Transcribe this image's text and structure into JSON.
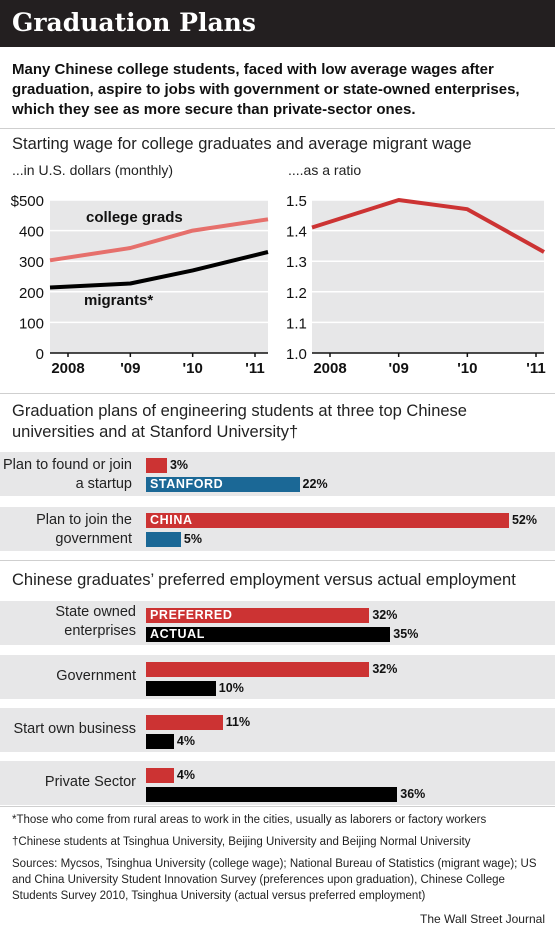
{
  "title": "Graduation Plans",
  "intro": "Many Chinese college students, faced with low average wages after graduation, aspire to jobs with government or state-owned enterprises, which they see as more secure than private-sector ones.",
  "colors": {
    "red": "#cc3333",
    "pink": "#e6706c",
    "blue": "#1b6896",
    "black": "#000000",
    "panel": "#e7e7e8"
  },
  "chart_data": [
    {
      "type": "line",
      "title": "Starting wage for college graduates and average migrant wage",
      "subtitle": "...in U.S. dollars (monthly)",
      "x": [
        "2008",
        "'09",
        "'10",
        "'11"
      ],
      "ylim": [
        0,
        500
      ],
      "ytick_labels": [
        "$500",
        "400",
        "300",
        "200",
        "100",
        "0"
      ],
      "grid": true,
      "series": [
        {
          "name": "college grads",
          "values": [
            303,
            343,
            400,
            437
          ]
        },
        {
          "name": "migrants*",
          "values": [
            214,
            227,
            270,
            330
          ]
        }
      ]
    },
    {
      "type": "line",
      "subtitle": "....as a ratio",
      "x": [
        "2008",
        "'09",
        "'10",
        "'11"
      ],
      "ylim": [
        1.0,
        1.5
      ],
      "ytick_labels": [
        "1.5",
        "1.4",
        "1.3",
        "1.2",
        "1.1",
        "1.0"
      ],
      "grid": true,
      "series": [
        {
          "values": [
            1.41,
            1.5,
            1.47,
            1.33
          ]
        }
      ]
    },
    {
      "type": "bar",
      "title": "Graduation plans of engineering students at three top Chinese universities and at Stanford University†",
      "series_labels": [
        "CHINA",
        "STANFORD"
      ],
      "groups": [
        {
          "label": "Plan to found or join a startup",
          "values": [
            3,
            22
          ]
        },
        {
          "label": "Plan to join the government",
          "values": [
            52,
            5
          ]
        }
      ],
      "value_labels": [
        [
          "3%",
          "22%"
        ],
        [
          "52%",
          "5%"
        ]
      ]
    },
    {
      "type": "bar",
      "title": "Chinese graduates’ preferred employment versus actual employment",
      "series_labels": [
        "PREFERRED",
        "ACTUAL"
      ],
      "groups": [
        {
          "label": "State owned enterprises",
          "values": [
            32,
            35
          ]
        },
        {
          "label": "Government",
          "values": [
            32,
            10
          ]
        },
        {
          "label": "Start own business",
          "values": [
            11,
            4
          ]
        },
        {
          "label": "Private Sector",
          "values": [
            4,
            36
          ]
        }
      ],
      "value_labels": [
        [
          "32%",
          "35%"
        ],
        [
          "32%",
          "10%"
        ],
        [
          "11%",
          "4%"
        ],
        [
          "4%",
          "36%"
        ]
      ]
    }
  ],
  "footnotes": {
    "migrants": "*Those who come from rural areas to work in the cities, usually as laborers or factory workers",
    "stanford": "†Chinese students at Tsinghua University, Beijing University and Beijing Normal University",
    "sources": "Sources: Mycsos, Tsinghua University (college wage); National Bureau of Statistics (migrant wage); US and China University Student Innovation Survey (preferences upon graduation), Chinese College Students Survey 2010, Tsinghua University (actual versus preferred employment)"
  },
  "credit": "The Wall Street Journal"
}
